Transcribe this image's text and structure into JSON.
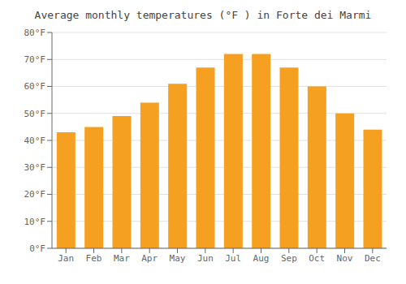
{
  "chart_data": {
    "type": "bar",
    "title": "Average monthly temperatures (°F ) in Forte dei Marmi",
    "categories": [
      "Jan",
      "Feb",
      "Mar",
      "Apr",
      "May",
      "Jun",
      "Jul",
      "Aug",
      "Sep",
      "Oct",
      "Nov",
      "Dec"
    ],
    "values": [
      43,
      45,
      49,
      54,
      61,
      67,
      72,
      72,
      67,
      60,
      50,
      44
    ],
    "color": "#F5A020",
    "ylim": [
      0,
      80
    ],
    "yticks": [
      {
        "value": 0,
        "label": "0°F"
      },
      {
        "value": 10,
        "label": "10°F"
      },
      {
        "value": 20,
        "label": "20°F"
      },
      {
        "value": 30,
        "label": "30°F"
      },
      {
        "value": 40,
        "label": "40°F"
      },
      {
        "value": 50,
        "label": "50°F"
      },
      {
        "value": 60,
        "label": "60°F"
      },
      {
        "value": 70,
        "label": "70°F"
      },
      {
        "value": 80,
        "label": "80°F"
      }
    ],
    "grid": true
  }
}
